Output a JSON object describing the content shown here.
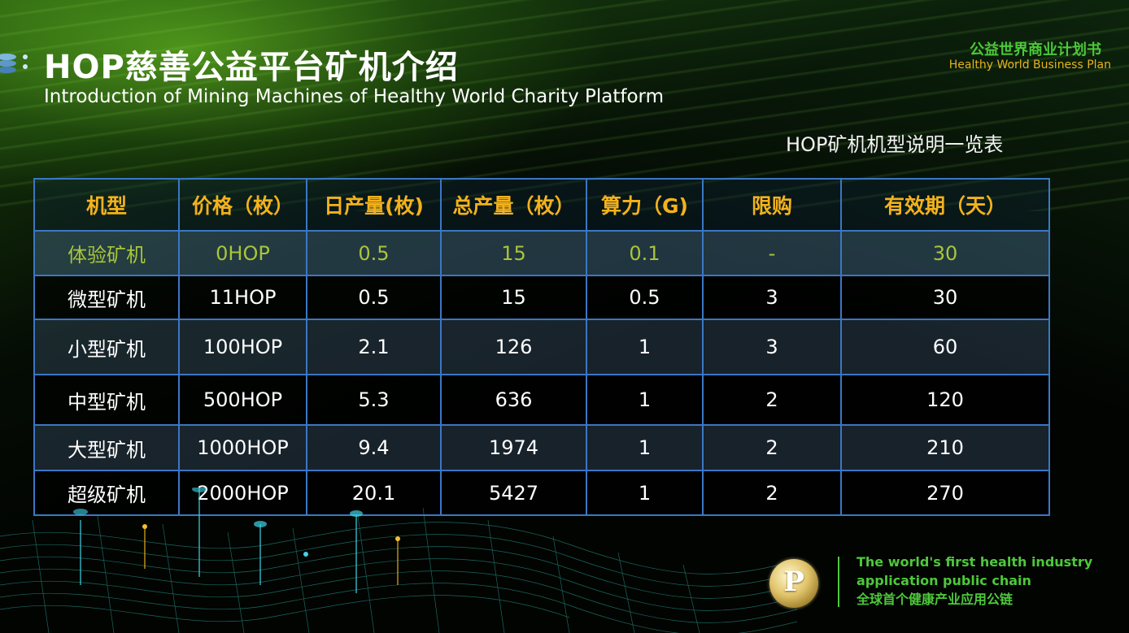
{
  "header": {
    "title_cn": "HOP慈善公益平台矿机介绍",
    "title_en": "Introduction of Mining Machines of Healthy World Charity Platform"
  },
  "brand": {
    "name_cn": "公益世界商业计划书",
    "name_en": "Healthy World Business Plan"
  },
  "table": {
    "caption": "HOP矿机机型说明一览表",
    "columns": [
      "机型",
      "价格（枚）",
      "日产量(枚)",
      "总产量（枚）",
      "算力（G)",
      "限购",
      "有效期（天）"
    ],
    "rows": [
      [
        "体验矿机",
        "0HOP",
        "0.5",
        "15",
        "0.1",
        "-",
        "30"
      ],
      [
        "微型矿机",
        "11HOP",
        "0.5",
        "15",
        "0.5",
        "3",
        "30"
      ],
      [
        "小型矿机",
        "100HOP",
        "2.1",
        "126",
        "1",
        "3",
        "60"
      ],
      [
        "中型矿机",
        "500HOP",
        "5.3",
        "636",
        "1",
        "2",
        "120"
      ],
      [
        "大型矿机",
        "1000HOP",
        "9.4",
        "1974",
        "1",
        "2",
        "210"
      ],
      [
        "超级矿机",
        "2000HOP",
        "20.1",
        "5427",
        "1",
        "2",
        "270"
      ]
    ]
  },
  "footer": {
    "logo_letter": "P",
    "slogan_line1": "The world's first health industry",
    "slogan_line2": "application public chain",
    "slogan_cn": "全球首个健康产业应用公链"
  },
  "colors": {
    "header_text": "#f3b21c",
    "brand_green": "#4dc83a",
    "table_border": "#3b77c4"
  }
}
